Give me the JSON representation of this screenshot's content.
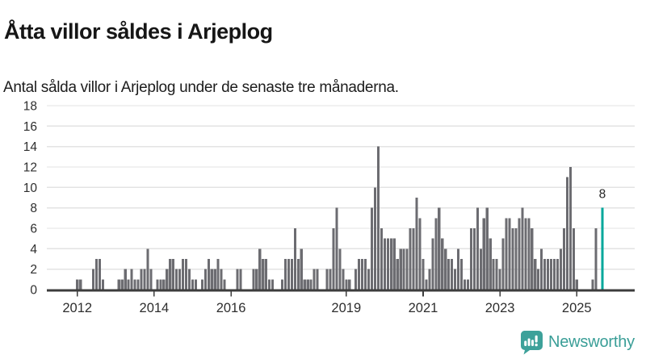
{
  "header": {
    "title": "Åtta villor såldes i Arjeplog",
    "subtitle": "Antal sålda villor i Arjeplog under de senaste tre månaderna."
  },
  "footer": {
    "brand": "Newsworthy",
    "brand_color": "#3a9e97",
    "logo_icon": "speech-bubble-with-bar-chart-and-exclamation"
  },
  "chart_data": {
    "type": "bar",
    "title": "Åtta villor såldes i Arjeplog",
    "xlabel": "",
    "ylabel": "",
    "x_start_month": "2011-04",
    "x_end_month": "2025-09",
    "values_by_year": {
      "2011": [
        0,
        0,
        0,
        0,
        0,
        0,
        0,
        0,
        0
      ],
      "2012": [
        1,
        1,
        0,
        0,
        0,
        2,
        3,
        3,
        1,
        0,
        0,
        0
      ],
      "2013": [
        0,
        1,
        1,
        2,
        1,
        2,
        1,
        1,
        2,
        2,
        4,
        2
      ],
      "2014": [
        0,
        1,
        1,
        1,
        2,
        3,
        3,
        2,
        2,
        3,
        3,
        2
      ],
      "2015": [
        1,
        1,
        0,
        1,
        2,
        3,
        2,
        2,
        3,
        2,
        1,
        0
      ],
      "2016": [
        0,
        0,
        2,
        2,
        0,
        0,
        0,
        2,
        2,
        4,
        3,
        3
      ],
      "2017": [
        1,
        1,
        0,
        0,
        1,
        3,
        3,
        3,
        6,
        3,
        4,
        1
      ],
      "2018": [
        1,
        1,
        2,
        2,
        0,
        0,
        2,
        2,
        6,
        8,
        4,
        2
      ],
      "2019": [
        1,
        1,
        0,
        2,
        3,
        3,
        3,
        2,
        8,
        10,
        14,
        6
      ],
      "2020": [
        5,
        5,
        5,
        5,
        3,
        4,
        4,
        4,
        6,
        6,
        9,
        7
      ],
      "2021": [
        3,
        1,
        2,
        5,
        7,
        8,
        5,
        4,
        3,
        3,
        2,
        4
      ],
      "2022": [
        3,
        1,
        1,
        6,
        6,
        8,
        4,
        7,
        8,
        5,
        3,
        3
      ],
      "2023": [
        2,
        5,
        7,
        7,
        6,
        6,
        7,
        8,
        7,
        7,
        6,
        3
      ],
      "2024": [
        2,
        4,
        3,
        3,
        3,
        3,
        3,
        4,
        6,
        11,
        12,
        6
      ],
      "2025": [
        1,
        0,
        0,
        0,
        0,
        1,
        6,
        0,
        8
      ]
    },
    "highlight": {
      "month": "2025-09",
      "value": 8,
      "label": "8",
      "color": "#00a79b"
    },
    "bar_color": "#6c6c71",
    "ylim": [
      0,
      18
    ],
    "yticks": [
      0,
      2,
      4,
      6,
      8,
      10,
      12,
      14,
      16,
      18
    ],
    "xticks": [
      {
        "label": "2012",
        "month": "2012-01"
      },
      {
        "label": "2014",
        "month": "2014-01"
      },
      {
        "label": "2016",
        "month": "2016-01"
      },
      {
        "label": "2019",
        "month": "2019-01"
      },
      {
        "label": "2021",
        "month": "2021-01"
      },
      {
        "label": "2023",
        "month": "2023-01"
      },
      {
        "label": "2025",
        "month": "2025-01"
      }
    ],
    "grid": true,
    "legend": false,
    "gridline_color": "#e3e3e3",
    "axis_color": "#3c3c3c",
    "tick_label_color": "#2e2e2e"
  }
}
